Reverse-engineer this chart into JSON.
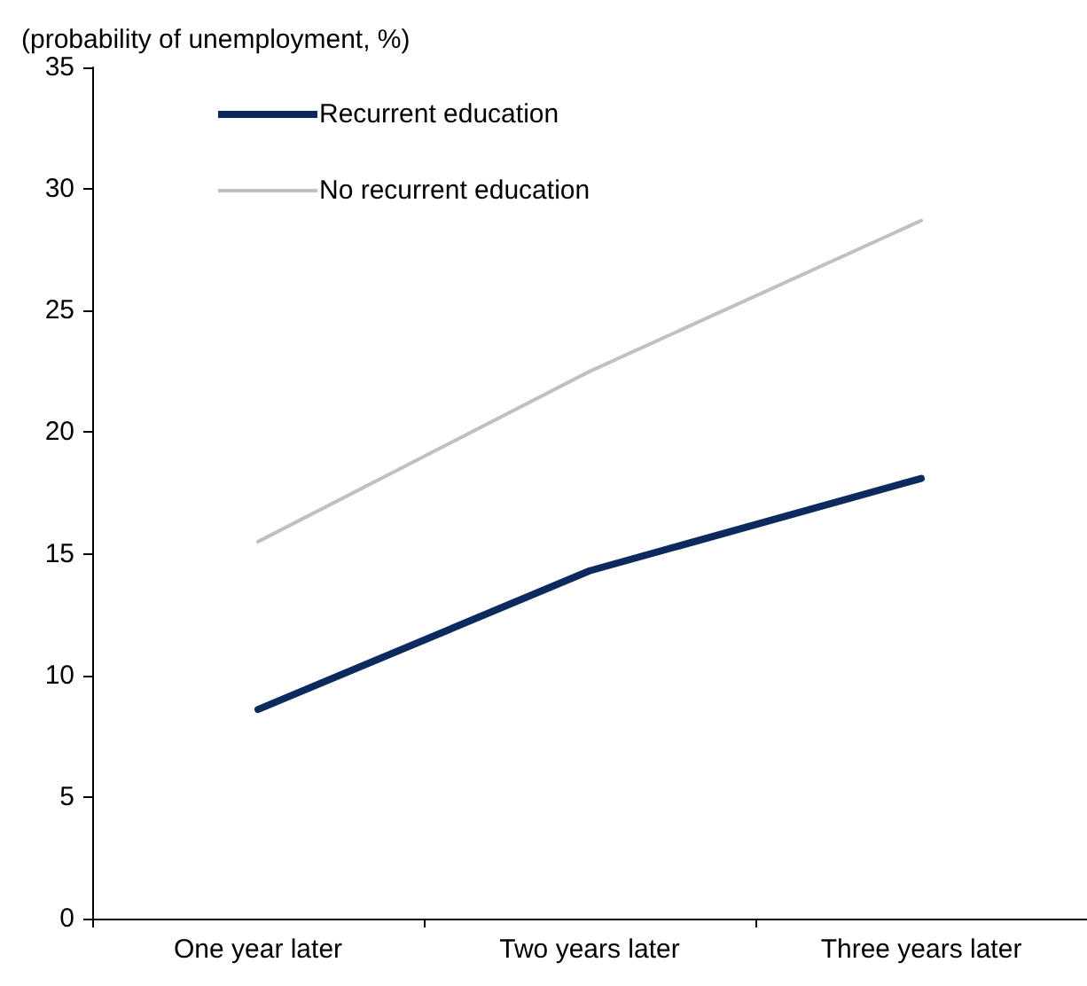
{
  "chart_data": {
    "type": "line",
    "ylabel": "(probability of unemployment, %)",
    "categories": [
      "One year later",
      "Two years later",
      "Three years later"
    ],
    "series": [
      {
        "name": "Recurrent education",
        "color": "#0d2a5e",
        "values": [
          8.6,
          14.3,
          18.1
        ]
      },
      {
        "name": "No recurrent education",
        "color": "#c0c0c0",
        "values": [
          15.5,
          22.5,
          28.7
        ]
      }
    ],
    "ylim": [
      0,
      35
    ],
    "yticks": [
      0,
      5,
      10,
      15,
      20,
      25,
      30,
      35
    ],
    "grid": false,
    "legend": "top left",
    "marker": "none",
    "line_style": "solid"
  }
}
